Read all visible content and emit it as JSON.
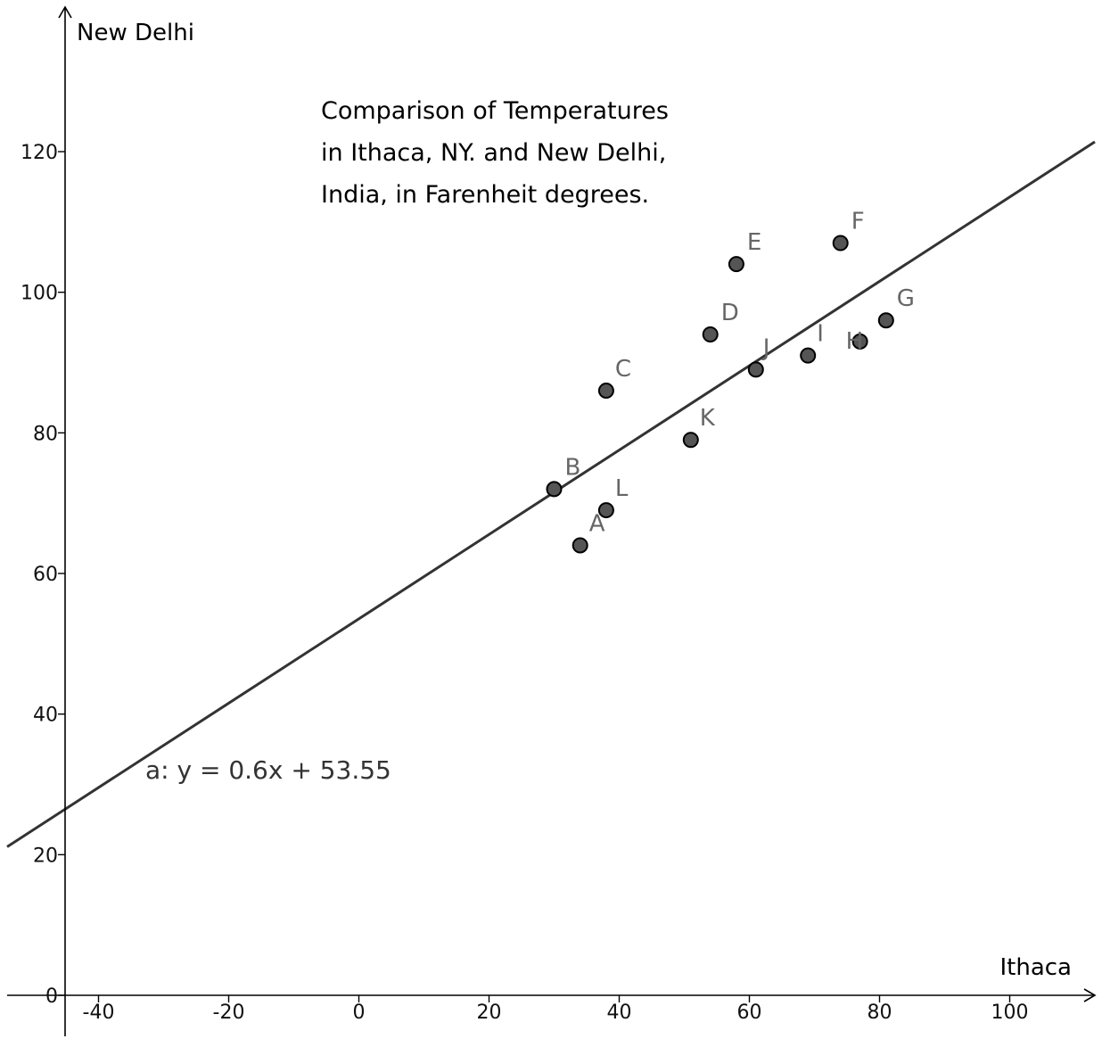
{
  "chart_data": {
    "type": "scatter",
    "title_lines": [
      "Comparison of Temperatures",
      "in Ithaca, NY. and New Delhi,",
      "India, in Farenheit degrees."
    ],
    "xlabel": "Ithaca",
    "ylabel": "New Delhi",
    "xlim": [
      -44,
      113
    ],
    "ylim": [
      -6,
      140
    ],
    "x_ticks": [
      -40,
      -20,
      0,
      20,
      40,
      60,
      80,
      100
    ],
    "y_ticks": [
      0,
      20,
      40,
      60,
      80,
      100,
      120
    ],
    "x_tick_labels": [
      "-40",
      "-20",
      "0",
      "20",
      "40",
      "60",
      "80",
      "100"
    ],
    "y_tick_labels": [
      "0",
      "20",
      "40",
      "60",
      "80",
      "100",
      "120"
    ],
    "grid": false,
    "points": [
      {
        "label": "A",
        "x": 34,
        "y": 64
      },
      {
        "label": "B",
        "x": 30,
        "y": 72
      },
      {
        "label": "C",
        "x": 38,
        "y": 86
      },
      {
        "label": "D",
        "x": 54,
        "y": 94
      },
      {
        "label": "E",
        "x": 58,
        "y": 104
      },
      {
        "label": "F",
        "x": 74,
        "y": 107
      },
      {
        "label": "G",
        "x": 81,
        "y": 96
      },
      {
        "label": "H",
        "x": 77,
        "y": 93
      },
      {
        "label": "I",
        "x": 69,
        "y": 91
      },
      {
        "label": "J",
        "x": 61,
        "y": 89
      },
      {
        "label": "K",
        "x": 51,
        "y": 79
      },
      {
        "label": "L",
        "x": 38,
        "y": 69
      }
    ],
    "regression": {
      "slope": 0.6,
      "intercept": 53.55,
      "equation_text": "a: y = 0.6x + 53.55"
    },
    "colors": {
      "point_fill": "#555555",
      "line": "#333333",
      "label": "#666666"
    }
  }
}
